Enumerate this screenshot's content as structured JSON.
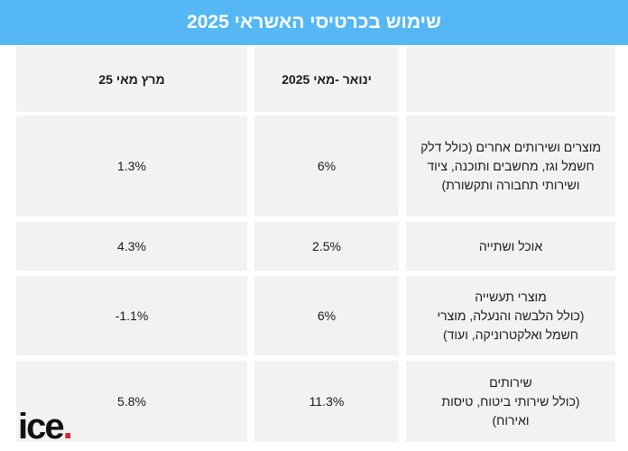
{
  "title": "שימוש בכרטיסי האשראי 2025",
  "table": {
    "headers": {
      "category": "",
      "ytd": "ינואר -מאי 2025",
      "mom": "מרץ מאי 25"
    },
    "rows": [
      {
        "category_lines": [
          "מוצרים ושירותים אחרים  (כולל דלק",
          "חשמל וגז, מחשבים ותוכנה, ציוד",
          "ושירותי תחבורה ותקשורת)"
        ],
        "ytd": "6%",
        "mom": "1.3%"
      },
      {
        "category_lines": [
          "אוכל ושתייה"
        ],
        "ytd": "2.5%",
        "mom": "4.3%"
      },
      {
        "category_lines": [
          "מוצרי תעשייה",
          "(כולל הלבשה והנעלה, מוצרי",
          "חשמל ואלקטרוניקה, ועוד)"
        ],
        "ytd": "6%",
        "mom": "-1.1%"
      },
      {
        "category_lines": [
          "שירותים",
          "(כולל שירותי ביטוח, טיסות",
          "ואירוח)"
        ],
        "ytd": "11.3%",
        "mom": "5.8%"
      }
    ]
  },
  "logo": {
    "text": "ice",
    "dot": ".",
    "dot_color": "#e0202f"
  },
  "colors": {
    "title_bg": "#55b8f5",
    "cell_bg": "#f2f2f2"
  }
}
